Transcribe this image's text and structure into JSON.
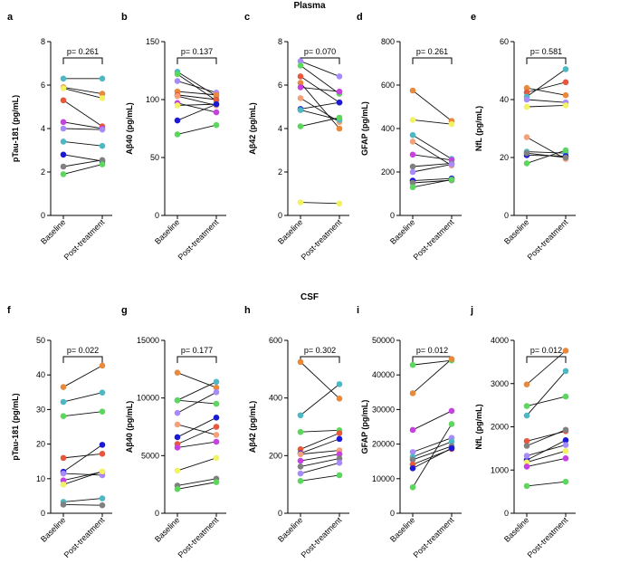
{
  "figure": {
    "sections": [
      "Plasma",
      "CSF"
    ],
    "colors": {
      "green": "#5cd65c",
      "blue": "#1a1ad6",
      "orange": "#e8893c",
      "magenta": "#c740e0",
      "coral": "#e8573c",
      "teal": "#4db8c4",
      "lavender": "#a78bfa",
      "gray": "#808080",
      "yellow": "#f2f264",
      "peach": "#f4a07a",
      "axis": "#000000"
    }
  },
  "chart_data": [
    {
      "type": "line",
      "panel": "a",
      "section": "Plasma",
      "ylabel": "pTau-181 (pg/mL)",
      "ylim": [
        0,
        8
      ],
      "yticks": [
        0,
        2,
        4,
        6,
        8
      ],
      "categories": [
        "Baseline",
        "Post-treatment"
      ],
      "pvalue": "p= 0.261",
      "series": [
        {
          "color": "teal",
          "values": [
            6.3,
            6.3
          ]
        },
        {
          "color": "orange",
          "values": [
            5.9,
            5.6
          ]
        },
        {
          "color": "yellow",
          "values": [
            5.85,
            5.4
          ]
        },
        {
          "color": "coral",
          "values": [
            5.3,
            4.1
          ]
        },
        {
          "color": "magenta",
          "values": [
            4.3,
            4.0
          ]
        },
        {
          "color": "lavender",
          "values": [
            4.0,
            3.95
          ]
        },
        {
          "color": "teal",
          "values": [
            3.4,
            3.2
          ]
        },
        {
          "color": "blue",
          "values": [
            2.8,
            2.5
          ]
        },
        {
          "color": "gray",
          "values": [
            2.25,
            2.55
          ]
        },
        {
          "color": "green",
          "values": [
            1.9,
            2.35
          ]
        }
      ]
    },
    {
      "type": "line",
      "panel": "b",
      "section": "Plasma",
      "ylabel": "Aβ40 (pg/mL)",
      "ylim": [
        0,
        150
      ],
      "yticks": [
        0,
        50,
        100,
        150
      ],
      "categories": [
        "Baseline",
        "Post-treatment"
      ],
      "pvalue": "p= 0.137",
      "series": [
        {
          "color": "teal",
          "values": [
            124,
            103
          ]
        },
        {
          "color": "green",
          "values": [
            122,
            99
          ]
        },
        {
          "color": "lavender",
          "values": [
            116,
            106
          ]
        },
        {
          "color": "orange",
          "values": [
            107,
            104
          ]
        },
        {
          "color": "coral",
          "values": [
            104,
            100
          ]
        },
        {
          "color": "peach",
          "values": [
            103,
            95
          ]
        },
        {
          "color": "magenta",
          "values": [
            97,
            89
          ]
        },
        {
          "color": "yellow",
          "values": [
            95,
            96
          ]
        },
        {
          "color": "blue",
          "values": [
            82,
            96
          ]
        },
        {
          "color": "green",
          "values": [
            70,
            78
          ]
        }
      ]
    },
    {
      "type": "line",
      "panel": "c",
      "section": "Plasma",
      "ylabel": "Aβ42 (pg/mL)",
      "ylim": [
        0,
        8
      ],
      "yticks": [
        0,
        2,
        4,
        6,
        8
      ],
      "categories": [
        "Baseline",
        "Post-treatment"
      ],
      "pvalue": "p= 0.070",
      "series": [
        {
          "color": "lavender",
          "values": [
            7.1,
            6.4
          ]
        },
        {
          "color": "green",
          "values": [
            6.9,
            5.6
          ]
        },
        {
          "color": "coral",
          "values": [
            6.4,
            5.2
          ]
        },
        {
          "color": "orange",
          "values": [
            6.1,
            4.0
          ]
        },
        {
          "color": "magenta",
          "values": [
            5.9,
            5.7
          ]
        },
        {
          "color": "peach",
          "values": [
            5.4,
            4.3
          ]
        },
        {
          "color": "blue",
          "values": [
            4.9,
            5.2
          ]
        },
        {
          "color": "teal",
          "values": [
            4.85,
            4.4
          ]
        },
        {
          "color": "green",
          "values": [
            4.1,
            4.5
          ]
        },
        {
          "color": "yellow",
          "values": [
            0.6,
            0.55
          ]
        }
      ]
    },
    {
      "type": "line",
      "panel": "d",
      "section": "Plasma",
      "ylabel": "GFAP (pg/mL)",
      "ylim": [
        0,
        800
      ],
      "yticks": [
        0,
        200,
        400,
        600,
        800
      ],
      "categories": [
        "Baseline",
        "Post-treatment"
      ],
      "pvalue": "p= 0.261",
      "series": [
        {
          "color": "orange",
          "values": [
            575,
            435
          ]
        },
        {
          "color": "yellow",
          "values": [
            440,
            420
          ]
        },
        {
          "color": "teal",
          "values": [
            370,
            260
          ]
        },
        {
          "color": "peach",
          "values": [
            340,
            230
          ]
        },
        {
          "color": "magenta",
          "values": [
            280,
            255
          ]
        },
        {
          "color": "gray",
          "values": [
            225,
            240
          ]
        },
        {
          "color": "lavender",
          "values": [
            200,
            235
          ]
        },
        {
          "color": "blue",
          "values": [
            160,
            170
          ]
        },
        {
          "color": "gray",
          "values": [
            150,
            162
          ]
        },
        {
          "color": "green",
          "values": [
            130,
            165
          ]
        }
      ]
    },
    {
      "type": "line",
      "panel": "e",
      "section": "Plasma",
      "ylabel": "NfL (pg/mL)",
      "ylim": [
        0,
        60
      ],
      "yticks": [
        0,
        20,
        40,
        60
      ],
      "categories": [
        "Baseline",
        "Post-treatment"
      ],
      "pvalue": "p= 0.581",
      "series": [
        {
          "color": "orange",
          "values": [
            44,
            41.5
          ]
        },
        {
          "color": "coral",
          "values": [
            42.5,
            46
          ]
        },
        {
          "color": "teal",
          "values": [
            41,
            50.5
          ]
        },
        {
          "color": "lavender",
          "values": [
            40,
            39
          ]
        },
        {
          "color": "yellow",
          "values": [
            37.5,
            38
          ]
        },
        {
          "color": "peach",
          "values": [
            27,
            19.5
          ]
        },
        {
          "color": "teal",
          "values": [
            22,
            21.5
          ]
        },
        {
          "color": "blue",
          "values": [
            20.8,
            20.5
          ]
        },
        {
          "color": "gray",
          "values": [
            21.5,
            20
          ]
        },
        {
          "color": "green",
          "values": [
            18,
            22.5
          ]
        }
      ]
    },
    {
      "type": "line",
      "panel": "f",
      "section": "CSF",
      "ylabel": "pTau-181 (pg/mL)",
      "ylim": [
        0,
        50
      ],
      "yticks": [
        0,
        10,
        20,
        30,
        40,
        50
      ],
      "categories": [
        "Baseline",
        "Post-treatment"
      ],
      "pvalue": "p= 0.022",
      "series": [
        {
          "color": "orange",
          "values": [
            36.5,
            42.7
          ]
        },
        {
          "color": "teal",
          "values": [
            32.2,
            34.9
          ]
        },
        {
          "color": "green",
          "values": [
            28.1,
            29.4
          ]
        },
        {
          "color": "coral",
          "values": [
            16,
            17.2
          ]
        },
        {
          "color": "blue",
          "values": [
            12,
            19.8
          ]
        },
        {
          "color": "lavender",
          "values": [
            11.5,
            11
          ]
        },
        {
          "color": "magenta",
          "values": [
            9.5,
            12
          ]
        },
        {
          "color": "yellow",
          "values": [
            8.3,
            12.1
          ]
        },
        {
          "color": "teal",
          "values": [
            3.3,
            4.3
          ]
        },
        {
          "color": "gray",
          "values": [
            2.5,
            2.3
          ]
        }
      ]
    },
    {
      "type": "line",
      "panel": "g",
      "section": "CSF",
      "ylabel": "Aβ40 (pg/mL)",
      "ylim": [
        0,
        15000
      ],
      "yticks": [
        0,
        5000,
        10000,
        15000
      ],
      "categories": [
        "Baseline",
        "Post-treatment"
      ],
      "pvalue": "p= 0.177",
      "series": [
        {
          "color": "orange",
          "values": [
            12200,
            10900
          ]
        },
        {
          "color": "teal",
          "values": [
            9800,
            11400
          ]
        },
        {
          "color": "green",
          "values": [
            9800,
            9500
          ]
        },
        {
          "color": "lavender",
          "values": [
            8700,
            10500
          ]
        },
        {
          "color": "peach",
          "values": [
            7700,
            6800
          ]
        },
        {
          "color": "blue",
          "values": [
            6600,
            8300
          ]
        },
        {
          "color": "coral",
          "values": [
            6000,
            7500
          ]
        },
        {
          "color": "magenta",
          "values": [
            5700,
            6200
          ]
        },
        {
          "color": "yellow",
          "values": [
            3700,
            4800
          ]
        },
        {
          "color": "gray",
          "values": [
            2400,
            3000
          ]
        },
        {
          "color": "green",
          "values": [
            2100,
            2700
          ]
        }
      ]
    },
    {
      "type": "line",
      "panel": "h",
      "section": "CSF",
      "ylabel": "Aβ42 (pg/mL)",
      "ylim": [
        0,
        600
      ],
      "yticks": [
        0,
        200,
        400,
        600
      ],
      "categories": [
        "Baseline",
        "Post-treatment"
      ],
      "pvalue": "p= 0.302",
      "series": [
        {
          "color": "orange",
          "values": [
            525,
            398
          ]
        },
        {
          "color": "teal",
          "values": [
            340,
            448
          ]
        },
        {
          "color": "green",
          "values": [
            282,
            288
          ]
        },
        {
          "color": "coral",
          "values": [
            222,
            278
          ]
        },
        {
          "color": "blue",
          "values": [
            208,
            258
          ]
        },
        {
          "color": "peach",
          "values": [
            205,
            218
          ]
        },
        {
          "color": "magenta",
          "values": [
            182,
            205
          ]
        },
        {
          "color": "gray",
          "values": [
            162,
            190
          ]
        },
        {
          "color": "lavender",
          "values": [
            138,
            175
          ]
        },
        {
          "color": "green",
          "values": [
            112,
            132
          ]
        }
      ]
    },
    {
      "type": "line",
      "panel": "i",
      "section": "CSF",
      "ylabel": "GFAP (pg/mL)",
      "ylim": [
        0,
        50000
      ],
      "yticks": [
        0,
        10000,
        20000,
        30000,
        40000,
        50000
      ],
      "categories": [
        "Baseline",
        "Post-treatment"
      ],
      "pvalue": "p= 0.012",
      "series": [
        {
          "color": "green",
          "values": [
            42900,
            44200
          ]
        },
        {
          "color": "orange",
          "values": [
            34700,
            44600
          ]
        },
        {
          "color": "magenta",
          "values": [
            24100,
            29600
          ]
        },
        {
          "color": "lavender",
          "values": [
            17700,
            21800
          ]
        },
        {
          "color": "teal",
          "values": [
            16300,
            20700
          ]
        },
        {
          "color": "gray",
          "values": [
            15500,
            19400
          ]
        },
        {
          "color": "coral",
          "values": [
            14100,
            18600
          ]
        },
        {
          "color": "blue",
          "values": [
            13000,
            18800
          ]
        },
        {
          "color": "green",
          "values": [
            7500,
            25800
          ]
        }
      ]
    },
    {
      "type": "line",
      "panel": "j",
      "section": "CSF",
      "ylabel": "NfL (pg/mL)",
      "ylim": [
        0,
        4000
      ],
      "yticks": [
        0,
        1000,
        2000,
        3000,
        4000
      ],
      "categories": [
        "Baseline",
        "Post-treatment"
      ],
      "pvalue": "p= 0.012",
      "series": [
        {
          "color": "orange",
          "values": [
            2980,
            3760
          ]
        },
        {
          "color": "green",
          "values": [
            2480,
            2700
          ]
        },
        {
          "color": "teal",
          "values": [
            2260,
            3290
          ]
        },
        {
          "color": "coral",
          "values": [
            1670,
            1900
          ]
        },
        {
          "color": "gray",
          "values": [
            1560,
            1930
          ]
        },
        {
          "color": "blue",
          "values": [
            1230,
            1690
          ]
        },
        {
          "color": "yellow",
          "values": [
            1180,
            1440
          ]
        },
        {
          "color": "magenta",
          "values": [
            1080,
            1270
          ]
        },
        {
          "color": "lavender",
          "values": [
            1330,
            1580
          ]
        },
        {
          "color": "green",
          "values": [
            630,
            730
          ]
        }
      ]
    }
  ]
}
